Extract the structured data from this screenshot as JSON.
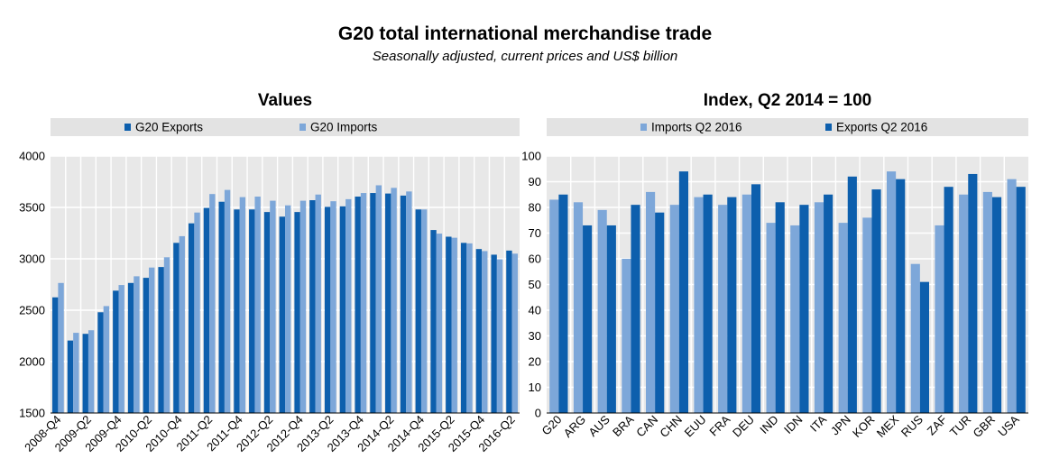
{
  "title": "G20 total international merchandise trade",
  "subtitle": "Seasonally adjusted, current prices and US$ billion",
  "colors": {
    "dark": "#0d5fad",
    "light": "#7da7d9",
    "panel_bg": "#e8e8e8",
    "legend_bg": "#e3e3e3"
  },
  "chart_data": [
    {
      "type": "bar",
      "title": "Values",
      "xlabel": "",
      "ylabel": "",
      "ylim": [
        1500,
        4000
      ],
      "yticks": [
        1500,
        2000,
        2500,
        3000,
        3500,
        4000
      ],
      "legend_position": "top",
      "grid": true,
      "categories": [
        "2008-Q4",
        "2009-Q1",
        "2009-Q2",
        "2009-Q3",
        "2009-Q4",
        "2010-Q1",
        "2010-Q2",
        "2010-Q3",
        "2010-Q4",
        "2011-Q1",
        "2011-Q2",
        "2011-Q3",
        "2011-Q4",
        "2012-Q1",
        "2012-Q2",
        "2012-Q3",
        "2012-Q4",
        "2013-Q1",
        "2013-Q2",
        "2013-Q3",
        "2013-Q4",
        "2014-Q1",
        "2014-Q2",
        "2014-Q3",
        "2014-Q4",
        "2015-Q1",
        "2015-Q2",
        "2015-Q3",
        "2015-Q4",
        "2016-Q1",
        "2016-Q2"
      ],
      "tick_labels": [
        "2008-Q4",
        "",
        "2009-Q2",
        "",
        "2009-Q4",
        "",
        "2010-Q2",
        "",
        "2010-Q4",
        "",
        "2011-Q2",
        "",
        "2011-Q4",
        "",
        "2012-Q2",
        "",
        "2012-Q4",
        "",
        "2013-Q2",
        "",
        "2013-Q4",
        "",
        "2014-Q2",
        "",
        "2014-Q4",
        "",
        "2015-Q2",
        "",
        "2015-Q4",
        "",
        "2016-Q2"
      ],
      "series": [
        {
          "name": "G20 Exports",
          "color": "#0d5fad",
          "values": [
            2625,
            2205,
            2270,
            2480,
            2690,
            2765,
            2815,
            2920,
            3155,
            3345,
            3495,
            3555,
            3480,
            3480,
            3455,
            3410,
            3455,
            3570,
            3505,
            3510,
            3605,
            3640,
            3635,
            3615,
            3480,
            3280,
            3215,
            3155,
            3095,
            3040,
            3080
          ]
        },
        {
          "name": "G20 Imports",
          "color": "#7da7d9",
          "values": [
            2765,
            2280,
            2305,
            2540,
            2745,
            2830,
            2915,
            3015,
            3220,
            3450,
            3630,
            3670,
            3600,
            3605,
            3565,
            3520,
            3565,
            3625,
            3560,
            3580,
            3640,
            3715,
            3690,
            3655,
            3480,
            3245,
            3205,
            3150,
            3075,
            2995,
            3050
          ]
        }
      ]
    },
    {
      "type": "bar",
      "title": "Index, Q2 2014 = 100",
      "xlabel": "",
      "ylabel": "",
      "ylim": [
        0,
        100
      ],
      "yticks": [
        0,
        10,
        20,
        30,
        40,
        50,
        60,
        70,
        80,
        90,
        100
      ],
      "legend_position": "top",
      "grid": true,
      "categories": [
        "G20",
        "ARG",
        "AUS",
        "BRA",
        "CAN",
        "CHN",
        "EUU",
        "FRA",
        "DEU",
        "IND",
        "IDN",
        "ITA",
        "JPN",
        "KOR",
        "MEX",
        "RUS",
        "ZAF",
        "TUR",
        "GBR",
        "USA"
      ],
      "series": [
        {
          "name": "Imports Q2 2016",
          "color": "#7da7d9",
          "values": [
            83,
            82,
            79,
            60,
            86,
            81,
            84,
            81,
            85,
            74,
            73,
            82,
            74,
            76,
            94,
            58,
            73,
            85,
            86,
            91
          ]
        },
        {
          "name": "Exports Q2 2016",
          "color": "#0d5fad",
          "values": [
            85,
            73,
            73,
            81,
            78,
            94,
            85,
            84,
            89,
            82,
            81,
            85,
            92,
            87,
            91,
            51,
            88,
            93,
            84,
            88
          ]
        }
      ]
    }
  ]
}
